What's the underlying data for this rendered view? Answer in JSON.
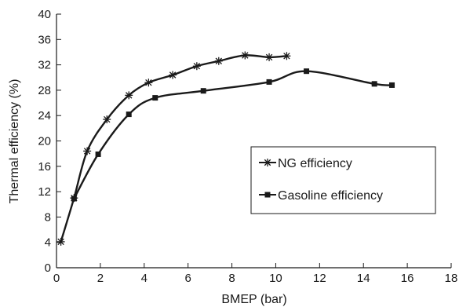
{
  "chart_data": {
    "type": "line",
    "title": "",
    "xlabel": "BMEP (bar)",
    "ylabel": "Thermal efficiency (%)",
    "xlim": [
      0,
      18
    ],
    "ylim": [
      0,
      40
    ],
    "xticks": [
      "0",
      "2",
      "4",
      "6",
      "8",
      "10",
      "12",
      "14",
      "16",
      "18"
    ],
    "yticks": [
      "0",
      "4",
      "8",
      "12",
      "16",
      "20",
      "24",
      "28",
      "32",
      "36",
      "40"
    ],
    "grid": false,
    "legend_position": "right",
    "series": [
      {
        "name": "NG efficiency",
        "marker": "asterisk",
        "color": "#1a1a1a",
        "x": [
          0.2,
          0.8,
          1.4,
          2.3,
          3.3,
          4.2,
          5.3,
          6.4,
          7.4,
          8.6,
          9.7,
          10.5
        ],
        "y": [
          4.1,
          11.0,
          18.4,
          23.4,
          27.2,
          29.2,
          30.4,
          31.8,
          32.6,
          33.5,
          33.2,
          33.4
        ]
      },
      {
        "name": "Gasoline efficiency",
        "marker": "square",
        "color": "#1a1a1a",
        "x": [
          0.8,
          1.9,
          3.3,
          4.5,
          6.7,
          9.7,
          11.4,
          14.5,
          15.3
        ],
        "y": [
          10.9,
          17.9,
          24.2,
          26.8,
          27.9,
          29.3,
          31.0,
          29.0,
          28.8
        ]
      }
    ]
  }
}
